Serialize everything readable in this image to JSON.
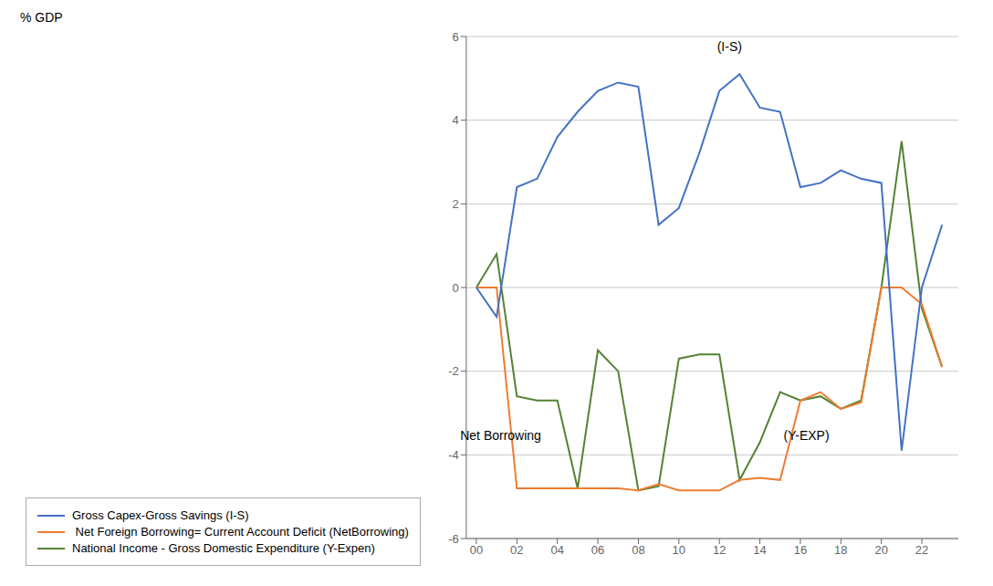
{
  "chart_data": {
    "type": "line",
    "ylabel": "% GDP",
    "x": [
      2000,
      2001,
      2002,
      2003,
      2004,
      2005,
      2006,
      2007,
      2008,
      2009,
      2010,
      2011,
      2012,
      2013,
      2014,
      2015,
      2016,
      2017,
      2018,
      2019,
      2020,
      2021,
      2022,
      2023
    ],
    "series": [
      {
        "name": "Gross Capex-Gross Savings (I-S)",
        "color": "#4472C4",
        "values": [
          0.0,
          -0.7,
          2.4,
          2.6,
          3.6,
          4.2,
          4.7,
          4.9,
          4.8,
          1.5,
          1.9,
          3.2,
          4.7,
          5.1,
          4.3,
          4.2,
          2.4,
          2.5,
          2.8,
          2.6,
          2.5,
          -3.9,
          0.0,
          1.5
        ]
      },
      {
        "name": " Net Foreign Borrowing= Current Account Deficit (NetBorrowing)",
        "color": "#ED7D31",
        "values": [
          0.0,
          0.0,
          -4.8,
          -4.8,
          -4.8,
          -4.8,
          -4.8,
          -4.8,
          -4.85,
          -4.7,
          -4.85,
          -4.85,
          -4.85,
          -4.6,
          -4.55,
          -4.6,
          -2.7,
          -2.5,
          -2.9,
          -2.75,
          0.0,
          0.0,
          -0.4,
          -1.9
        ]
      },
      {
        "name": "National Income - Gross Domestic Expenditure (Y-Expen)",
        "color": "#548235",
        "values": [
          0.0,
          0.8,
          -2.6,
          -2.7,
          -2.7,
          -4.8,
          -1.5,
          -2.0,
          -4.85,
          -4.75,
          -1.7,
          -1.6,
          -1.6,
          -4.6,
          -3.7,
          -2.5,
          -2.7,
          -2.6,
          -2.9,
          -2.7,
          0.0,
          3.5,
          -0.5,
          -1.9
        ]
      }
    ],
    "xlim": [
      1999.5,
      2023.8
    ],
    "xticks": [
      {
        "value": 2000,
        "label": "00"
      },
      {
        "value": 2002,
        "label": "02"
      },
      {
        "value": 2004,
        "label": "04"
      },
      {
        "value": 2006,
        "label": "06"
      },
      {
        "value": 2008,
        "label": "08"
      },
      {
        "value": 2010,
        "label": "10"
      },
      {
        "value": 2012,
        "label": "12"
      },
      {
        "value": 2014,
        "label": "14"
      },
      {
        "value": 2016,
        "label": "16"
      },
      {
        "value": 2018,
        "label": "18"
      },
      {
        "value": 2020,
        "label": "20"
      },
      {
        "value": 2022,
        "label": "22"
      }
    ],
    "ylim": [
      -6,
      6
    ],
    "yticks": [
      -6,
      -4,
      -2,
      0,
      2,
      4,
      6
    ],
    "grid": "y",
    "legend": "bottom",
    "annotations": [
      {
        "text": "(I-S)",
        "x": 2012.5,
        "y": 5.55
      },
      {
        "text": "Net Borrowing",
        "x": 2001.2,
        "y": -3.75
      },
      {
        "text": "(Y-EXP)",
        "x": 2016.3,
        "y": -3.75
      }
    ]
  }
}
